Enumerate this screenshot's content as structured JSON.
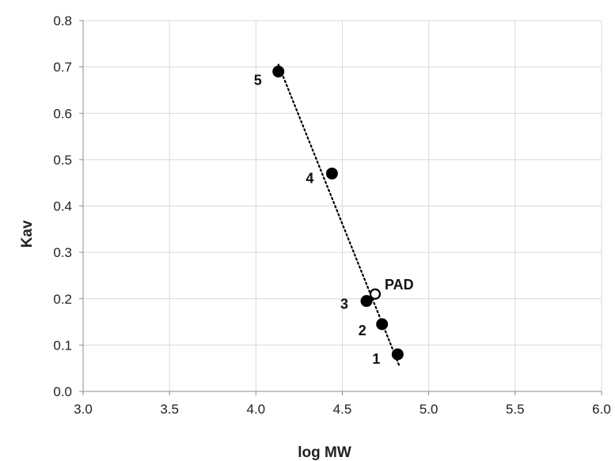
{
  "chart_data": {
    "type": "scatter",
    "xlabel": "log MW",
    "ylabel": "Kav",
    "xlim": [
      3.0,
      6.0
    ],
    "ylim": [
      0.0,
      0.8
    ],
    "x_ticks": [
      "3.0",
      "3.5",
      "4.0",
      "4.5",
      "5.0",
      "5.5",
      "6.0"
    ],
    "y_ticks": [
      "0.0",
      "0.1",
      "0.2",
      "0.3",
      "0.4",
      "0.5",
      "0.6",
      "0.7",
      "0.8"
    ],
    "grid": true,
    "series": [
      {
        "marker": "filled-circle",
        "color": "#000000",
        "points": [
          {
            "label": "1",
            "x": 4.82,
            "y": 0.08
          },
          {
            "label": "2",
            "x": 4.73,
            "y": 0.145
          },
          {
            "label": "3",
            "x": 4.64,
            "y": 0.195
          },
          {
            "label": "4",
            "x": 4.44,
            "y": 0.47
          },
          {
            "label": "5",
            "x": 4.13,
            "y": 0.69
          }
        ]
      },
      {
        "marker": "open-circle",
        "color": "#000000",
        "points": [
          {
            "label": "PAD",
            "x": 4.69,
            "y": 0.21
          }
        ]
      }
    ],
    "trendline": {
      "style": "dotted",
      "color": "#000000",
      "from": {
        "x": 4.13,
        "y": 0.705
      },
      "to": {
        "x": 4.83,
        "y": 0.055
      }
    }
  }
}
